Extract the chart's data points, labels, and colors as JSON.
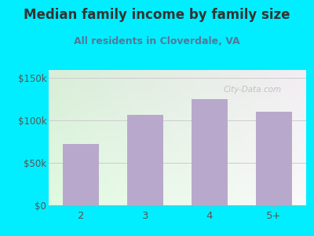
{
  "title": "Median family income by family size",
  "subtitle": "All residents in Cloverdale, VA",
  "categories": [
    "2",
    "3",
    "4",
    "5+"
  ],
  "values": [
    72000,
    107000,
    125000,
    110000
  ],
  "bar_color": "#b8a9cc",
  "title_fontsize": 12,
  "subtitle_fontsize": 9,
  "title_color": "#333333",
  "subtitle_color": "#557799",
  "tick_label_color": "#555555",
  "xtick_label_color": "#555555",
  "background_outer": "#00eeff",
  "ylim": [
    0,
    160000
  ],
  "yticks": [
    0,
    50000,
    100000,
    150000
  ],
  "ytick_labels": [
    "$0",
    "$50k",
    "$100k",
    "$150k"
  ],
  "watermark": "City-Data.com",
  "bg_colors": [
    "#cce8cc",
    "#e8f5e0",
    "#f5f8ee"
  ],
  "grid_color": "#cccccc"
}
